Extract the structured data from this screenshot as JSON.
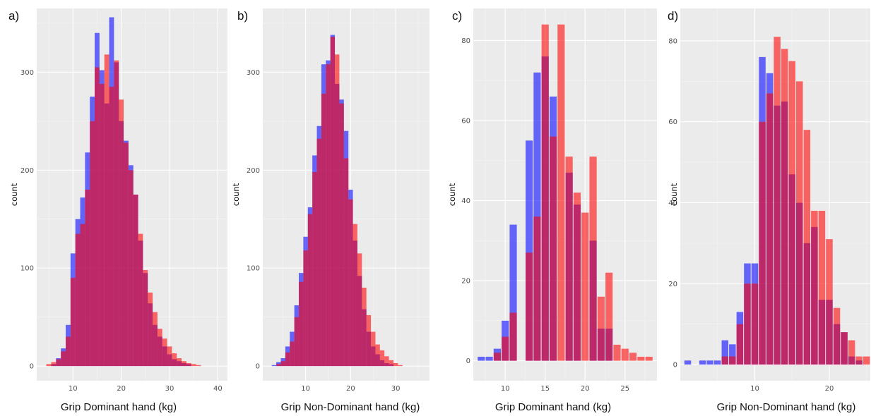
{
  "chart_data": [
    {
      "panel": "a)",
      "type": "bar",
      "xlabel": "Grip Dominant hand (kg)",
      "ylabel": "count",
      "xlim": [
        2.5,
        42
      ],
      "ylim": [
        -15,
        365
      ],
      "xticks": [
        10,
        20,
        30,
        40
      ],
      "yticks": [
        0,
        100,
        200,
        300
      ],
      "bin_width": 1,
      "x": [
        4,
        5,
        6,
        7,
        8,
        9,
        10,
        11,
        12,
        13,
        14,
        15,
        16,
        17,
        18,
        19,
        20,
        21,
        22,
        23,
        24,
        25,
        26,
        27,
        28,
        29,
        30,
        31,
        32,
        33,
        34,
        35,
        36,
        37,
        38,
        39
      ],
      "series": [
        {
          "color": "#0000ff",
          "values": [
            0,
            0,
            2,
            8,
            18,
            42,
            115,
            150,
            172,
            218,
            275,
            340,
            302,
            268,
            356,
            310,
            250,
            230,
            205,
            175,
            128,
            95,
            64,
            42,
            30,
            20,
            12,
            7,
            5,
            3,
            2,
            0,
            0,
            0,
            0,
            0
          ]
        },
        {
          "color": "#ff0000",
          "values": [
            0,
            2,
            4,
            7,
            15,
            30,
            90,
            135,
            145,
            180,
            250,
            305,
            288,
            318,
            285,
            312,
            272,
            228,
            200,
            175,
            135,
            98,
            75,
            55,
            38,
            28,
            20,
            13,
            8,
            5,
            3,
            2,
            1,
            0,
            0,
            0
          ]
        }
      ]
    },
    {
      "panel": "b)",
      "type": "bar",
      "xlabel": "Grip Non-Dominant hand (kg)",
      "ylabel": "count",
      "xlim": [
        0.5,
        37.5
      ],
      "ylim": [
        -15,
        365
      ],
      "xticks": [
        10,
        20,
        30
      ],
      "yticks": [
        0,
        100,
        200,
        300
      ],
      "bin_width": 1,
      "x": [
        2,
        3,
        4,
        5,
        6,
        7,
        8,
        9,
        10,
        11,
        12,
        13,
        14,
        15,
        16,
        17,
        18,
        19,
        20,
        21,
        22,
        23,
        24,
        25,
        26,
        27,
        28,
        29,
        30,
        31,
        32,
        33,
        34
      ],
      "series": [
        {
          "color": "#0000ff",
          "values": [
            0,
            1,
            4,
            8,
            20,
            35,
            62,
            95,
            132,
            162,
            215,
            245,
            308,
            312,
            338,
            288,
            272,
            240,
            180,
            128,
            92,
            58,
            35,
            20,
            12,
            6,
            3,
            2,
            0,
            0,
            0,
            0,
            0
          ]
        },
        {
          "color": "#ff0000",
          "values": [
            0,
            0,
            2,
            5,
            14,
            25,
            50,
            86,
            118,
            155,
            198,
            232,
            278,
            308,
            336,
            318,
            268,
            212,
            170,
            145,
            115,
            80,
            52,
            35,
            22,
            16,
            10,
            6,
            3,
            1,
            0,
            0,
            0
          ]
        }
      ]
    },
    {
      "panel": "c)",
      "type": "bar",
      "xlabel": "Grip Dominant hand (kg)",
      "ylabel": "count",
      "xlim": [
        6,
        29
      ],
      "ylim": [
        -5,
        88
      ],
      "xticks": [
        10,
        15,
        20,
        25
      ],
      "yticks": [
        0,
        20,
        40,
        60,
        80
      ],
      "bin_width": 0.9,
      "x": [
        7,
        8,
        9,
        10,
        11,
        12,
        13,
        14,
        15,
        16,
        17,
        18,
        19,
        20,
        21,
        22,
        23,
        24,
        25,
        26,
        27,
        28
      ],
      "series": [
        {
          "color": "#0000ff",
          "values": [
            1,
            1,
            3,
            10,
            34,
            0,
            55,
            72,
            76,
            66,
            0,
            47,
            39,
            0,
            30,
            8,
            8,
            0,
            0,
            0,
            0,
            0
          ]
        },
        {
          "color": "#ff0000",
          "values": [
            0,
            0,
            2,
            6,
            12,
            0,
            27,
            36,
            84,
            56,
            84,
            51,
            42,
            37,
            51,
            16,
            22,
            4,
            3,
            2,
            1,
            1
          ]
        }
      ]
    },
    {
      "panel": "d)",
      "type": "bar",
      "xlabel": "Grip Non-Dominant hand (kg)",
      "ylabel": "count",
      "xlim": [
        0,
        25.5
      ],
      "ylim": [
        -4,
        88
      ],
      "xticks": [
        10,
        20
      ],
      "yticks": [
        0,
        20,
        40,
        60,
        80
      ],
      "bin_width": 0.9,
      "x": [
        1,
        3,
        4,
        5,
        6,
        7,
        8,
        9,
        10,
        11,
        12,
        13,
        14,
        15,
        16,
        17,
        18,
        19,
        20,
        21,
        22,
        23,
        24,
        25
      ],
      "series": [
        {
          "color": "#0000ff",
          "values": [
            1,
            1,
            1,
            1,
            6,
            5,
            13,
            25,
            25,
            76,
            72,
            64,
            65,
            47,
            40,
            30,
            34,
            16,
            16,
            10,
            8,
            2,
            1,
            0
          ]
        },
        {
          "color": "#ff0000",
          "values": [
            0,
            0,
            0,
            0,
            2,
            2,
            10,
            20,
            20,
            60,
            67,
            81,
            78,
            75,
            70,
            58,
            38,
            38,
            31,
            14,
            8,
            6,
            2,
            2
          ]
        }
      ]
    }
  ]
}
